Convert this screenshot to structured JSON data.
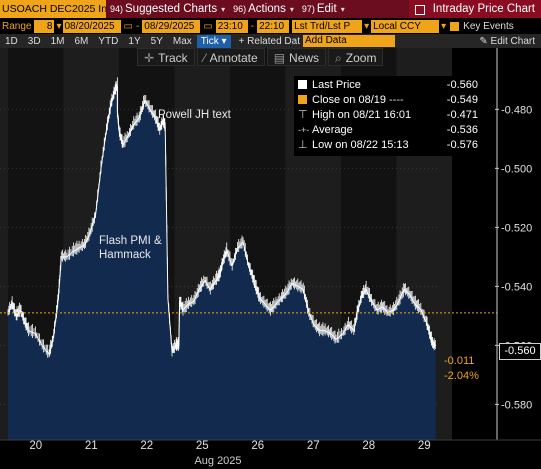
{
  "toolbar": {
    "ticker": "USOACH DEC2025 In",
    "menus": [
      {
        "num": "94)",
        "label": "Suggested Charts"
      },
      {
        "num": "96)",
        "label": "Actions"
      },
      {
        "num": "97)",
        "label": "Edit"
      }
    ],
    "intraday": "Intraday Price Chart"
  },
  "range_bar": {
    "range_label": "Range",
    "range_value": "8",
    "start_date": "08/20/2025",
    "end_date": "08/29/2025",
    "start_time": "23:10",
    "end_time": "22:10",
    "price_type": "Lst Trd/Lst P",
    "currency": "Local CCY",
    "key_events": "Key Events"
  },
  "period_bar": {
    "periods": [
      "1D",
      "3D",
      "1M",
      "6M",
      "YTD",
      "1Y",
      "5Y",
      "Max"
    ],
    "interval": "Tick",
    "related_data": "+ Related Dat",
    "add_data_placeholder": "Add Data",
    "edit_chart": "Edit Chart"
  },
  "tools": {
    "track": "Track",
    "annotate": "Annotate",
    "news": "News",
    "zoom": "Zoom"
  },
  "legend": {
    "last_price_label": "Last Price",
    "last_price_value": "-0.560",
    "close_label": "Close on 08/19",
    "close_value": "-0.549",
    "high_label": "High on 08/21 16:01",
    "high_value": "-0.471",
    "average_label": "Average",
    "average_value": "-0.536",
    "low_label": "Low on 08/22 15:13",
    "low_value": "-0.576"
  },
  "annotations": {
    "powell": "Powell JH text",
    "flash_pmi": "Flash PMI &",
    "hammack": "Hammack"
  },
  "change": {
    "abs": "-0.011",
    "pct": "-2.04%",
    "last_badge": "-0.560"
  },
  "colors": {
    "accent": "#f0a41a",
    "area_fill": "#112a4d",
    "line": "#ffffff",
    "close_line": "#f0a41a",
    "title_bar": "#6b0d1f"
  },
  "chart_data": {
    "type": "area",
    "title": "",
    "xlabel": "Aug 2025",
    "ylabel": "",
    "x_ticks": [
      "20",
      "21",
      "22",
      "25",
      "26",
      "27",
      "28",
      "29"
    ],
    "y_ticks": [
      -0.48,
      -0.5,
      -0.52,
      -0.54,
      -0.56,
      -0.58
    ],
    "ylim": [
      -0.588,
      -0.466
    ],
    "reference_line": {
      "name": "Close on 08/19",
      "value": -0.549
    },
    "series": [
      {
        "name": "Last Price",
        "x": [
          0,
          0.3,
          0.6,
          0.9,
          1.2,
          1.5,
          2.0,
          2.5,
          3.0,
          3.3,
          3.55,
          3.7,
          3.9,
          4.3,
          4.8,
          5.2,
          5.6,
          6.0,
          6.4,
          6.8,
          7.2,
          7.55,
          7.8,
          8.0,
          8.0,
          8.15,
          8.4,
          8.8,
          9.2,
          9.6,
          10.0,
          10.4,
          10.8,
          11.1,
          11.35,
          11.5,
          11.7,
          12.0,
          12.3,
          12.5,
          12.55,
          12.8,
          13.2,
          13.6,
          14.0,
          14.4,
          14.8,
          15.2,
          15.5,
          15.7,
          16.0,
          16.4,
          16.8,
          17.2,
          17.6,
          17.9,
          18.1,
          18.4,
          18.8,
          19.2,
          19.6,
          20.0,
          20.4,
          20.8,
          21.2,
          21.6,
          22.0,
          22.4,
          22.8,
          23.2,
          23.6,
          24.0,
          24.5,
          24.9,
          25.3,
          25.6,
          25.9,
          26.2,
          26.6,
          27.0,
          27.4,
          27.8,
          28.2,
          28.6,
          29.0,
          29.4,
          29.8,
          30.2,
          30.6,
          30.9,
          31.1,
          31.3
        ],
        "y": [
          -0.549,
          -0.546,
          -0.55,
          -0.548,
          -0.552,
          -0.555,
          -0.556,
          -0.56,
          -0.563,
          -0.558,
          -0.549,
          -0.543,
          -0.53,
          -0.53,
          -0.528,
          -0.527,
          -0.526,
          -0.522,
          -0.516,
          -0.5,
          -0.487,
          -0.478,
          -0.474,
          -0.472,
          -0.481,
          -0.488,
          -0.492,
          -0.489,
          -0.485,
          -0.483,
          -0.477,
          -0.48,
          -0.483,
          -0.487,
          -0.484,
          -0.486,
          -0.544,
          -0.562,
          -0.56,
          -0.56,
          -0.545,
          -0.548,
          -0.546,
          -0.545,
          -0.541,
          -0.538,
          -0.541,
          -0.538,
          -0.536,
          -0.532,
          -0.528,
          -0.533,
          -0.527,
          -0.525,
          -0.533,
          -0.537,
          -0.54,
          -0.544,
          -0.546,
          -0.548,
          -0.546,
          -0.544,
          -0.542,
          -0.539,
          -0.54,
          -0.541,
          -0.549,
          -0.553,
          -0.555,
          -0.555,
          -0.556,
          -0.558,
          -0.556,
          -0.553,
          -0.555,
          -0.548,
          -0.543,
          -0.541,
          -0.545,
          -0.548,
          -0.547,
          -0.549,
          -0.548,
          -0.545,
          -0.541,
          -0.543,
          -0.546,
          -0.548,
          -0.552,
          -0.557,
          -0.56,
          -0.56
        ]
      }
    ]
  }
}
